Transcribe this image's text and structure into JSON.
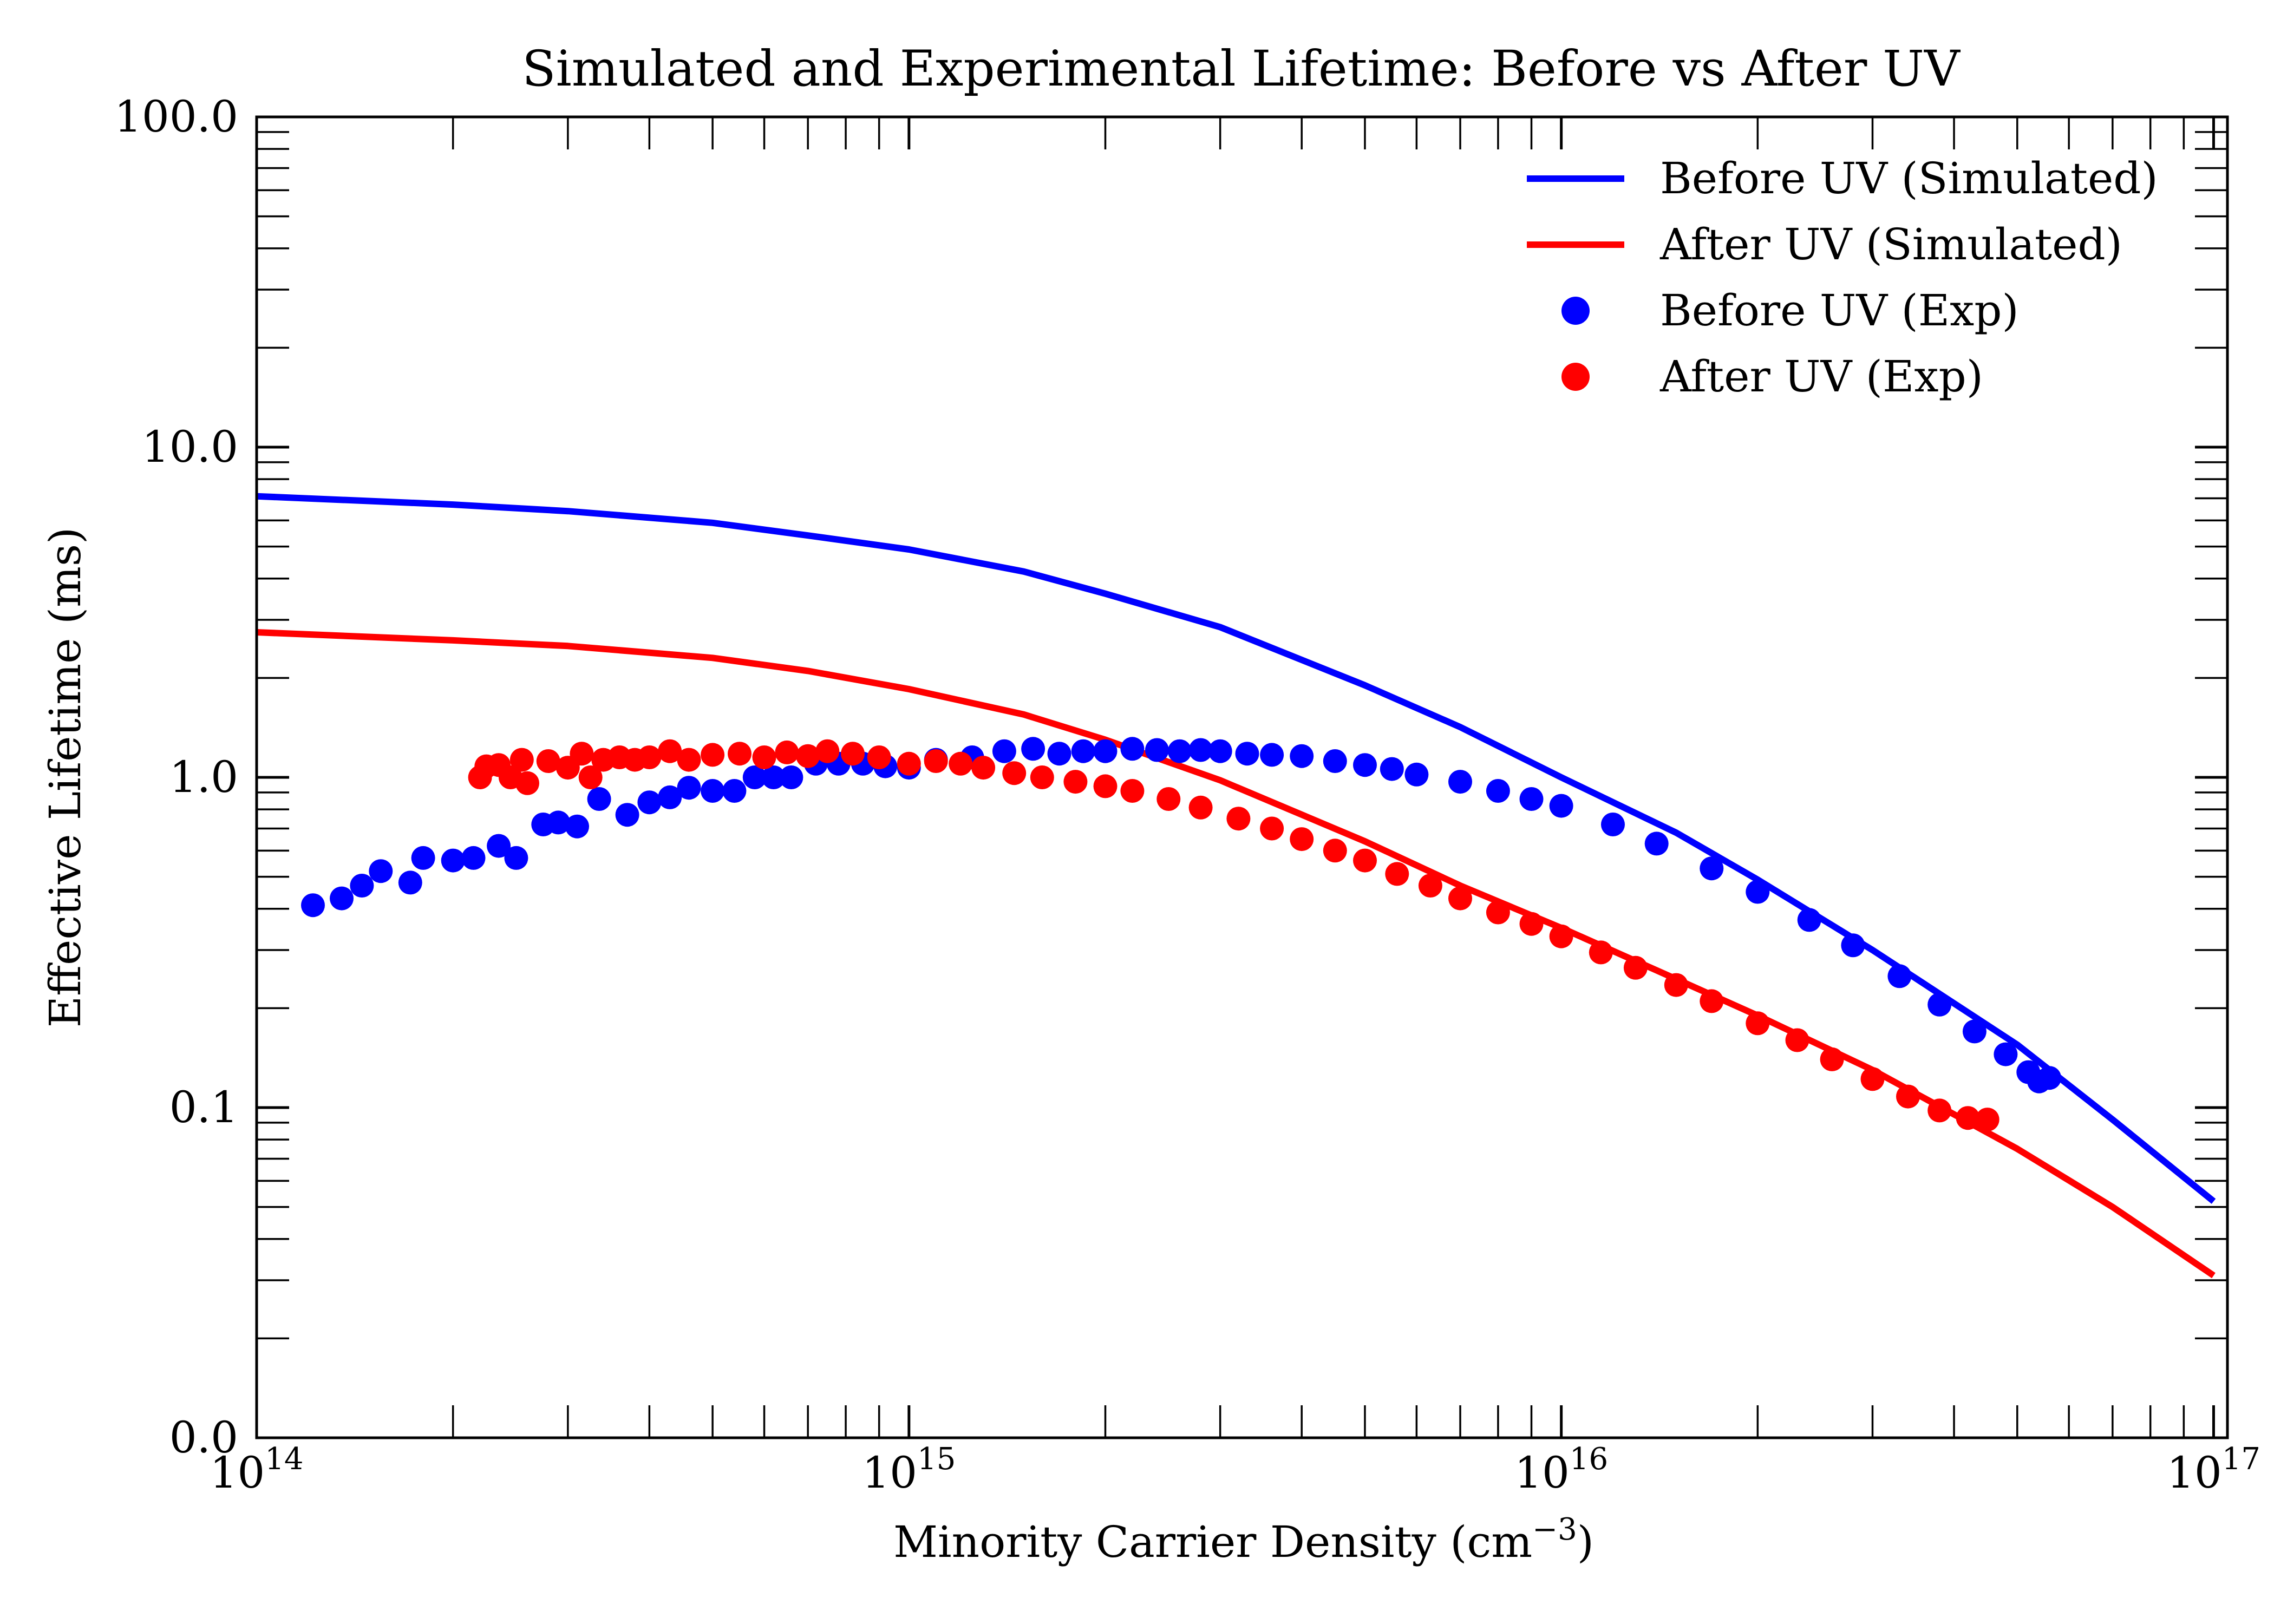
{
  "chart_data": {
    "type": "line",
    "title": "Simulated and Experimental Lifetime: Before vs After UV",
    "xlabel": "Minority Carrier Density (cm",
    "xlabel_exp": "−3",
    "xlabel_suffix": ")",
    "ylabel": "Effective Lifetime (ms)",
    "xscale": "log",
    "yscale": "log",
    "xlim": [
      100000000000000.0,
      1.05e+17
    ],
    "ylim": [
      0.01,
      100
    ],
    "x_ticks": [
      {
        "value": 100000000000000.0,
        "base": "10",
        "exp": "14"
      },
      {
        "value": 1000000000000000.0,
        "base": "10",
        "exp": "15"
      },
      {
        "value": 1e+16,
        "base": "10",
        "exp": "16"
      },
      {
        "value": 1e+17,
        "base": "10",
        "exp": "17"
      }
    ],
    "y_ticks": [
      {
        "value": 0.01,
        "label": "0.0"
      },
      {
        "value": 0.1,
        "label": "0.1"
      },
      {
        "value": 1,
        "label": "1.0"
      },
      {
        "value": 10,
        "label": "10.0"
      },
      {
        "value": 100,
        "label": "100.0"
      }
    ],
    "grid": false,
    "legend_position": "top-right",
    "series": [
      {
        "name": "Before UV (Simulated)",
        "kind": "line",
        "color": "#0000ff",
        "points": [
          [
            100000000000000.0,
            7.1
          ],
          [
            200000000000000.0,
            6.7
          ],
          [
            300000000000000.0,
            6.4
          ],
          [
            500000000000000.0,
            5.9
          ],
          [
            700000000000000.0,
            5.4
          ],
          [
            1000000000000000.0,
            4.9
          ],
          [
            1500000000000000.0,
            4.2
          ],
          [
            2000000000000000.0,
            3.6
          ],
          [
            3000000000000000.0,
            2.85
          ],
          [
            5000000000000000.0,
            1.9
          ],
          [
            7000000000000000.0,
            1.42
          ],
          [
            1e+16,
            1.0
          ],
          [
            1.5e+16,
            0.68
          ],
          [
            2e+16,
            0.49
          ],
          [
            3e+16,
            0.3
          ],
          [
            5e+16,
            0.155
          ],
          [
            7e+16,
            0.092
          ],
          [
            1e+17,
            0.052
          ]
        ]
      },
      {
        "name": "After UV (Simulated)",
        "kind": "line",
        "color": "#ff0000",
        "points": [
          [
            100000000000000.0,
            2.75
          ],
          [
            200000000000000.0,
            2.6
          ],
          [
            300000000000000.0,
            2.5
          ],
          [
            500000000000000.0,
            2.3
          ],
          [
            700000000000000.0,
            2.1
          ],
          [
            1000000000000000.0,
            1.85
          ],
          [
            1500000000000000.0,
            1.55
          ],
          [
            2000000000000000.0,
            1.3
          ],
          [
            3000000000000000.0,
            0.98
          ],
          [
            5000000000000000.0,
            0.64
          ],
          [
            7000000000000000.0,
            0.47
          ],
          [
            1e+16,
            0.35
          ],
          [
            1.5e+16,
            0.245
          ],
          [
            2e+16,
            0.19
          ],
          [
            3e+16,
            0.13
          ],
          [
            5e+16,
            0.075
          ],
          [
            7e+16,
            0.05
          ],
          [
            1e+17,
            0.031
          ]
        ]
      },
      {
        "name": "Before UV (Exp)",
        "kind": "scatter",
        "color": "#0000ff",
        "points": [
          [
            122000000000000.0,
            0.41
          ],
          [
            135000000000000.0,
            0.43
          ],
          [
            145000000000000.0,
            0.47
          ],
          [
            155000000000000.0,
            0.52
          ],
          [
            172000000000000.0,
            0.48
          ],
          [
            180000000000000.0,
            0.57
          ],
          [
            200000000000000.0,
            0.56
          ],
          [
            215000000000000.0,
            0.57
          ],
          [
            235000000000000.0,
            0.62
          ],
          [
            250000000000000.0,
            0.57
          ],
          [
            275000000000000.0,
            0.72
          ],
          [
            290000000000000.0,
            0.73
          ],
          [
            310000000000000.0,
            0.71
          ],
          [
            335000000000000.0,
            0.86
          ],
          [
            370000000000000.0,
            0.77
          ],
          [
            400000000000000.0,
            0.84
          ],
          [
            430000000000000.0,
            0.87
          ],
          [
            460000000000000.0,
            0.93
          ],
          [
            500000000000000.0,
            0.91
          ],
          [
            540000000000000.0,
            0.91
          ],
          [
            580000000000000.0,
            1.0
          ],
          [
            620000000000000.0,
            1.0
          ],
          [
            660000000000000.0,
            1.0
          ],
          [
            720000000000000.0,
            1.1
          ],
          [
            780000000000000.0,
            1.1
          ],
          [
            850000000000000.0,
            1.1
          ],
          [
            920000000000000.0,
            1.08
          ],
          [
            1000000000000000.0,
            1.07
          ],
          [
            1100000000000000.0,
            1.13
          ],
          [
            1250000000000000.0,
            1.15
          ],
          [
            1400000000000000.0,
            1.2
          ],
          [
            1550000000000000.0,
            1.22
          ],
          [
            1700000000000000.0,
            1.18
          ],
          [
            1850000000000000.0,
            1.2
          ],
          [
            2000000000000000.0,
            1.2
          ],
          [
            2200000000000000.0,
            1.22
          ],
          [
            2400000000000000.0,
            1.21
          ],
          [
            2600000000000000.0,
            1.2
          ],
          [
            2800000000000000.0,
            1.21
          ],
          [
            3000000000000000.0,
            1.2
          ],
          [
            3300000000000000.0,
            1.18
          ],
          [
            3600000000000000.0,
            1.17
          ],
          [
            4000000000000000.0,
            1.16
          ],
          [
            4500000000000000.0,
            1.12
          ],
          [
            5000000000000000.0,
            1.09
          ],
          [
            5500000000000000.0,
            1.06
          ],
          [
            6000000000000000.0,
            1.02
          ],
          [
            7000000000000000.0,
            0.97
          ],
          [
            8000000000000000.0,
            0.91
          ],
          [
            9000000000000000.0,
            0.86
          ],
          [
            1e+16,
            0.82
          ],
          [
            1.2e+16,
            0.72
          ],
          [
            1.4e+16,
            0.63
          ],
          [
            1.7e+16,
            0.53
          ],
          [
            2e+16,
            0.45
          ],
          [
            2.4e+16,
            0.37
          ],
          [
            2.8e+16,
            0.31
          ],
          [
            3.3e+16,
            0.25
          ],
          [
            3.8e+16,
            0.205
          ],
          [
            4.3e+16,
            0.17
          ],
          [
            4.8e+16,
            0.145
          ],
          [
            5.2e+16,
            0.128
          ],
          [
            5.4e+16,
            0.12
          ],
          [
            5.6e+16,
            0.123
          ]
        ]
      },
      {
        "name": "After UV (Exp)",
        "kind": "scatter",
        "color": "#ff0000",
        "points": [
          [
            220000000000000.0,
            1.0
          ],
          [
            225000000000000.0,
            1.08
          ],
          [
            235000000000000.0,
            1.09
          ],
          [
            245000000000000.0,
            1.0
          ],
          [
            255000000000000.0,
            1.13
          ],
          [
            260000000000000.0,
            0.96
          ],
          [
            280000000000000.0,
            1.12
          ],
          [
            300000000000000.0,
            1.07
          ],
          [
            315000000000000.0,
            1.18
          ],
          [
            325000000000000.0,
            1.0
          ],
          [
            340000000000000.0,
            1.13
          ],
          [
            360000000000000.0,
            1.15
          ],
          [
            380000000000000.0,
            1.13
          ],
          [
            400000000000000.0,
            1.15
          ],
          [
            430000000000000.0,
            1.2
          ],
          [
            460000000000000.0,
            1.13
          ],
          [
            500000000000000.0,
            1.17
          ],
          [
            550000000000000.0,
            1.18
          ],
          [
            600000000000000.0,
            1.15
          ],
          [
            650000000000000.0,
            1.19
          ],
          [
            700000000000000.0,
            1.16
          ],
          [
            750000000000000.0,
            1.2
          ],
          [
            820000000000000.0,
            1.18
          ],
          [
            900000000000000.0,
            1.15
          ],
          [
            1000000000000000.0,
            1.1
          ],
          [
            1100000000000000.0,
            1.12
          ],
          [
            1200000000000000.0,
            1.1
          ],
          [
            1300000000000000.0,
            1.07
          ],
          [
            1450000000000000.0,
            1.03
          ],
          [
            1600000000000000.0,
            1.0
          ],
          [
            1800000000000000.0,
            0.97
          ],
          [
            2000000000000000.0,
            0.94
          ],
          [
            2200000000000000.0,
            0.91
          ],
          [
            2500000000000000.0,
            0.86
          ],
          [
            2800000000000000.0,
            0.81
          ],
          [
            3200000000000000.0,
            0.75
          ],
          [
            3600000000000000.0,
            0.7
          ],
          [
            4000000000000000.0,
            0.65
          ],
          [
            4500000000000000.0,
            0.6
          ],
          [
            5000000000000000.0,
            0.56
          ],
          [
            5600000000000000.0,
            0.51
          ],
          [
            6300000000000000.0,
            0.47
          ],
          [
            7000000000000000.0,
            0.43
          ],
          [
            8000000000000000.0,
            0.39
          ],
          [
            9000000000000000.0,
            0.36
          ],
          [
            1e+16,
            0.33
          ],
          [
            1.15e+16,
            0.295
          ],
          [
            1.3e+16,
            0.265
          ],
          [
            1.5e+16,
            0.235
          ],
          [
            1.7e+16,
            0.21
          ],
          [
            2e+16,
            0.18
          ],
          [
            2.3e+16,
            0.16
          ],
          [
            2.6e+16,
            0.14
          ],
          [
            3e+16,
            0.122
          ],
          [
            3.4e+16,
            0.108
          ],
          [
            3.8e+16,
            0.098
          ],
          [
            4.2e+16,
            0.093
          ],
          [
            4.5e+16,
            0.092
          ]
        ]
      }
    ]
  }
}
